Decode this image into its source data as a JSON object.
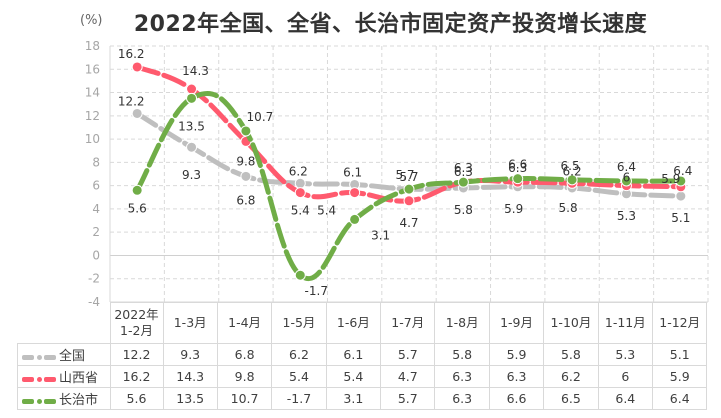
{
  "title": "2022年全国、全省、长治市固定资产投资增长速度",
  "unit_label": "(%)",
  "colors": {
    "national": "#bfbfbf",
    "shanxi": "#ff5a6e",
    "changzhi": "#70ad47",
    "grid": "#d9d9d9",
    "axis_text": "#a6a6a6"
  },
  "y_ticks": [
    "18",
    "16",
    "14",
    "12",
    "10",
    "8",
    "6",
    "4",
    "2",
    "0",
    "-2",
    "-4"
  ],
  "table": {
    "header": [
      "2022年\n1-2月",
      "1-3月",
      "1-4月",
      "1-5月",
      "1-6月",
      "1-7月",
      "1-8月",
      "1-9月",
      "1-10月",
      "1-11月",
      "1-12月"
    ],
    "rows": [
      {
        "name": "全国",
        "values": [
          "12.2",
          "9.3",
          "6.8",
          "6.2",
          "6.1",
          "5.7",
          "5.8",
          "5.9",
          "5.8",
          "5.3",
          "5.1"
        ]
      },
      {
        "name": "山西省",
        "values": [
          "16.2",
          "14.3",
          "9.8",
          "5.4",
          "5.4",
          "4.7",
          "6.3",
          "6.3",
          "6.2",
          "6",
          "5.9"
        ]
      },
      {
        "name": "长治市",
        "values": [
          "5.6",
          "13.5",
          "10.7",
          "-1.7",
          "3.1",
          "5.7",
          "6.3",
          "6.6",
          "6.5",
          "6.4",
          "6.4"
        ]
      }
    ]
  },
  "chart_data": {
    "type": "line",
    "title": "2022年全国、全省、长治市固定资产投资增长速度",
    "xlabel": "",
    "ylabel": "(%)",
    "ylim": [
      -4,
      18
    ],
    "y_step": 2,
    "grid": true,
    "legend_position": "table-left",
    "categories": [
      "2022年1-2月",
      "1-3月",
      "1-4月",
      "1-5月",
      "1-6月",
      "1-7月",
      "1-8月",
      "1-9月",
      "1-10月",
      "1-11月",
      "1-12月"
    ],
    "series": [
      {
        "name": "全国",
        "color": "#bfbfbf",
        "values": [
          12.2,
          9.3,
          6.8,
          6.2,
          6.1,
          5.7,
          5.8,
          5.9,
          5.8,
          5.3,
          5.1
        ]
      },
      {
        "name": "山西省",
        "color": "#ff5a6e",
        "values": [
          16.2,
          14.3,
          9.8,
          5.4,
          5.4,
          4.7,
          6.3,
          6.3,
          6.2,
          6,
          5.9
        ]
      },
      {
        "name": "长治市",
        "color": "#70ad47",
        "values": [
          5.6,
          13.5,
          10.7,
          -1.7,
          3.1,
          5.7,
          6.3,
          6.6,
          6.5,
          6.4,
          6.4
        ]
      }
    ]
  }
}
